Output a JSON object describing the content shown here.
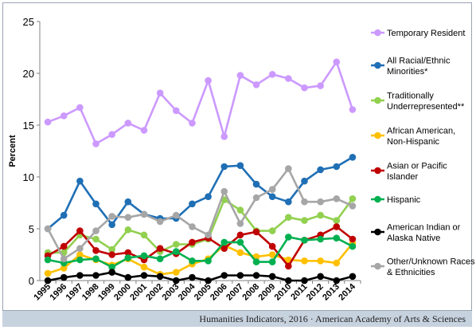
{
  "footer": {
    "credit": "Humanities Indicators, 2016 · American Academy of Arts & Sciences"
  },
  "chart_data": {
    "type": "line",
    "title": "",
    "xlabel": "",
    "ylabel": "Percent",
    "ylim": [
      0,
      25
    ],
    "yticks": [
      0,
      5,
      10,
      15,
      20,
      25
    ],
    "grid": false,
    "legend": "right",
    "x": [
      "1995",
      "1996",
      "1997",
      "1998",
      "1999",
      "2000",
      "2001",
      "2002",
      "2003",
      "2004",
      "2005",
      "2006",
      "2007",
      "2008",
      "2009",
      "2010",
      "2011",
      "2012",
      "2013",
      "2014"
    ],
    "series": [
      {
        "name": "Temporary Resident",
        "color": "#cc99ff",
        "values": [
          15.3,
          15.9,
          16.7,
          13.2,
          14.1,
          15.2,
          14.5,
          18.1,
          16.4,
          15.2,
          19.3,
          13.9,
          19.8,
          18.9,
          19.9,
          19.5,
          18.6,
          18.8,
          21.1,
          16.5
        ]
      },
      {
        "name": "All Racial/Ethnic Minorities*",
        "color": "#1f6fb5",
        "values": [
          5.0,
          6.3,
          9.6,
          7.4,
          5.4,
          7.6,
          6.4,
          6.0,
          6.0,
          7.4,
          8.1,
          11.0,
          11.1,
          9.3,
          8.1,
          7.6,
          9.6,
          10.7,
          11.0,
          11.9
        ]
      },
      {
        "name": "Traditionally Underrepresented**",
        "color": "#92d050",
        "values": [
          2.7,
          2.7,
          4.4,
          4.0,
          3.0,
          4.9,
          4.4,
          2.8,
          3.5,
          3.5,
          4.0,
          7.8,
          6.8,
          4.8,
          4.8,
          6.1,
          5.8,
          6.3,
          5.8,
          7.9
        ]
      },
      {
        "name": "African American, Non-Hispanic",
        "color": "#ffc000",
        "values": [
          0.7,
          1.2,
          2.5,
          2.0,
          1.5,
          2.1,
          1.3,
          0.6,
          0.8,
          1.6,
          2.1,
          3.4,
          2.7,
          2.3,
          2.5,
          2.0,
          1.9,
          1.9,
          1.7,
          3.6
        ]
      },
      {
        "name": "Asian or Pacific Islander",
        "color": "#c00000",
        "values": [
          2.4,
          3.3,
          4.8,
          2.9,
          2.5,
          2.7,
          2.0,
          3.1,
          2.6,
          3.7,
          4.1,
          3.1,
          4.4,
          4.7,
          3.3,
          1.4,
          3.9,
          4.4,
          5.2,
          4.0
        ]
      },
      {
        "name": "Hispanic",
        "color": "#00b050",
        "values": [
          2.0,
          1.7,
          2.0,
          2.1,
          1.3,
          2.2,
          2.4,
          2.1,
          2.8,
          1.9,
          1.9,
          3.7,
          3.7,
          1.8,
          1.8,
          4.2,
          3.9,
          4.0,
          4.1,
          3.3
        ]
      },
      {
        "name": "American Indian or Alaska Native",
        "color": "#000000",
        "values": [
          0.0,
          0.3,
          0.5,
          0.5,
          0.8,
          0.3,
          0.5,
          0.4,
          0.0,
          0.3,
          0.0,
          0.5,
          0.5,
          0.5,
          0.4,
          0.0,
          0.0,
          0.4,
          0.0,
          0.4
        ]
      },
      {
        "name": "Other/Unknown Races & Ethnicities",
        "color": "#a6a6a6",
        "values": [
          5.0,
          2.1,
          3.1,
          4.8,
          6.2,
          6.1,
          6.4,
          5.7,
          6.3,
          5.2,
          4.4,
          8.6,
          5.5,
          8.0,
          8.8,
          10.8,
          7.6,
          7.6,
          7.9,
          7.2
        ]
      }
    ],
    "legend_labels": [
      [
        "Temporary Resident"
      ],
      [
        "All Racial/Ethnic",
        "Minorities*"
      ],
      [
        "Traditionally",
        "Underrepresented**"
      ],
      [
        "African American,",
        "Non-Hispanic"
      ],
      [
        "Asian or Pacific",
        "Islander"
      ],
      [
        "Hispanic"
      ],
      [
        "American Indian or",
        "Alaska Native"
      ],
      [
        "Other/Unknown Races",
        "& Ethnicities"
      ]
    ]
  }
}
